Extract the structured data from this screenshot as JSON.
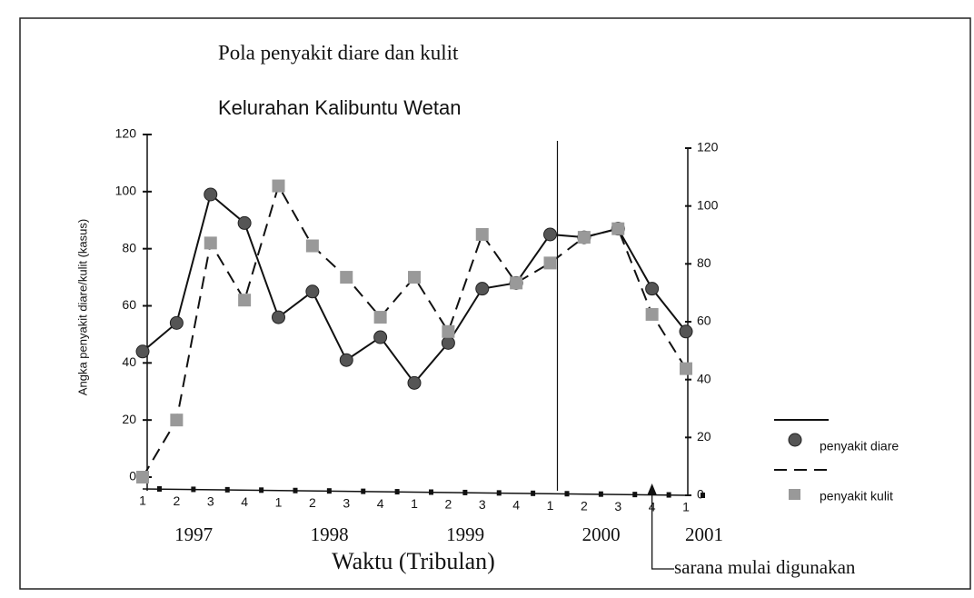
{
  "chart_data": {
    "type": "line",
    "title": "Pola  penyakit diare dan kulit",
    "subtitle": "Kelurahan Kalibuntu Wetan",
    "y_label": "Angka penyakit diare/kulit (kasus)",
    "x_label": "Waktu (Tribulan)",
    "annotation": "sarana mulai digunakan",
    "categories": [
      "1",
      "2",
      "3",
      "4",
      "1",
      "2",
      "3",
      "4",
      "1",
      "2",
      "3",
      "4",
      "1",
      "2",
      "3",
      "4",
      "1"
    ],
    "years": [
      "1997",
      "1997",
      "1997",
      "1997",
      "1998",
      "1998",
      "1998",
      "1998",
      "1999",
      "1999",
      "1999",
      "1999",
      "2000",
      "2000",
      "2000",
      "2000",
      "2001"
    ],
    "series": [
      {
        "name": "penyakit diare",
        "color": "#555555",
        "dash": false,
        "values": [
          44,
          54,
          99,
          89,
          56,
          65,
          41,
          49,
          33,
          47,
          66,
          68,
          85,
          84,
          87,
          66,
          51
        ]
      },
      {
        "name": "penyakit kulit",
        "color": "#999999",
        "dash": true,
        "values": [
          0,
          20,
          82,
          62,
          102,
          81,
          70,
          56,
          70,
          51,
          85,
          68,
          75,
          84,
          87,
          57,
          38
        ]
      }
    ],
    "ylim": [
      0,
      120
    ],
    "yticks": [
      0,
      20,
      40,
      60,
      80,
      100,
      120
    ],
    "y2lim": [
      0,
      120
    ],
    "y2ticks": [
      0,
      20,
      40,
      60,
      80,
      100,
      120
    ],
    "legend": "lower right"
  }
}
